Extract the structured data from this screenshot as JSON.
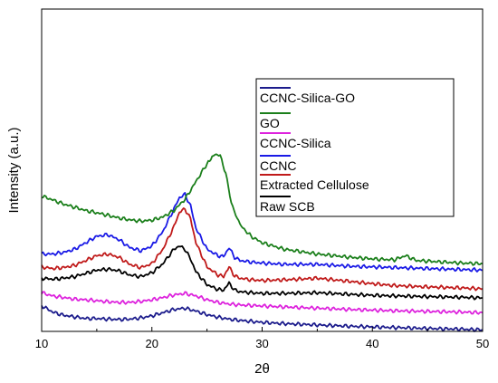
{
  "chart_data": {
    "type": "line",
    "xlabel": "2θ",
    "ylabel": "Intensity (a.u.)",
    "xlim": [
      10,
      50
    ],
    "xticks": [
      10,
      20,
      30,
      40,
      50
    ],
    "ylim": [
      0,
      100
    ],
    "y_tick_labels_shown": false,
    "grid": false,
    "legend_position": "right",
    "series": [
      {
        "name": "CCNC-Silica-GO",
        "color": "#1c1c8c",
        "x": [
          10,
          11,
          12,
          13,
          14,
          15,
          16,
          17,
          18,
          19,
          20,
          21,
          22,
          23,
          24,
          25,
          26,
          27,
          28,
          30,
          32,
          35,
          38,
          40,
          42,
          45,
          48,
          50
        ],
        "y": [
          8.0,
          6.0,
          5.0,
          4.5,
          4.0,
          4.0,
          3.8,
          3.7,
          3.8,
          4.2,
          4.8,
          5.8,
          6.8,
          7.2,
          6.3,
          5.2,
          4.4,
          3.8,
          3.4,
          2.8,
          2.4,
          2.0,
          1.6,
          1.4,
          1.2,
          0.9,
          0.7,
          0.5
        ]
      },
      {
        "name": "GO",
        "color": "#1b7f1b",
        "x": [
          10,
          11,
          12,
          13,
          14,
          15,
          16,
          17,
          18,
          19,
          20,
          21,
          22,
          23,
          24,
          25,
          25.7,
          26.2,
          26.7,
          27.2,
          28,
          29,
          30,
          32,
          35,
          38,
          40,
          42,
          43,
          44,
          46,
          48,
          50
        ],
        "y": [
          42.0,
          40.8,
          39.5,
          38.5,
          37.5,
          36.8,
          36.0,
          35.2,
          34.6,
          34.2,
          34.5,
          35.5,
          37.5,
          41.0,
          46.5,
          52.0,
          55.0,
          54.5,
          49.0,
          40.0,
          33.0,
          29.5,
          27.5,
          25.5,
          24.0,
          23.0,
          22.5,
          22.2,
          23.5,
          22.0,
          21.6,
          21.2,
          21.0
        ]
      },
      {
        "name": "CCNC-Silica",
        "color": "#dd22dd",
        "x": [
          10,
          11,
          12,
          13,
          14,
          15,
          16,
          17,
          18,
          19,
          20,
          21,
          22,
          23,
          24,
          25,
          26,
          27,
          28,
          30,
          32,
          35,
          38,
          40,
          42,
          45,
          48,
          50
        ],
        "y": [
          12.0,
          11.0,
          10.5,
          10.0,
          9.8,
          9.5,
          9.2,
          9.0,
          9.0,
          9.3,
          9.8,
          10.5,
          11.3,
          11.8,
          11.0,
          9.8,
          9.0,
          8.5,
          8.2,
          7.9,
          7.6,
          7.2,
          6.8,
          6.6,
          6.4,
          6.2,
          6.0,
          5.8
        ]
      },
      {
        "name": "CCNC",
        "color": "#1a1ae6",
        "x": [
          10,
          11,
          12,
          13,
          14,
          15,
          16,
          17,
          18,
          19,
          20,
          21,
          22,
          22.5,
          23,
          23.5,
          24,
          25,
          26,
          26.5,
          27,
          27.5,
          28,
          29,
          30,
          32,
          35,
          38,
          40,
          42,
          45,
          48,
          50
        ],
        "y": [
          24.0,
          24.0,
          24.5,
          25.5,
          27.5,
          29.5,
          30.0,
          28.5,
          26.0,
          25.0,
          26.5,
          31.0,
          38.0,
          41.5,
          42.5,
          39.0,
          32.0,
          25.5,
          23.5,
          23.2,
          26.0,
          23.0,
          22.0,
          21.5,
          21.2,
          20.8,
          20.8,
          20.2,
          20.0,
          19.8,
          19.5,
          19.2,
          19.0
        ]
      },
      {
        "name": "Extracted Cellulose",
        "color": "#c01a1a",
        "x": [
          10,
          11,
          12,
          13,
          14,
          15,
          16,
          17,
          18,
          19,
          20,
          21,
          22,
          22.5,
          23,
          23.5,
          24,
          25,
          26,
          26.5,
          27,
          27.5,
          28,
          29,
          30,
          32,
          35,
          38,
          40,
          42,
          45,
          48,
          50
        ],
        "y": [
          20.0,
          19.5,
          19.8,
          20.5,
          22.0,
          23.5,
          24.0,
          23.0,
          20.8,
          19.8,
          21.0,
          25.5,
          32.5,
          37.0,
          38.0,
          35.0,
          27.5,
          20.0,
          17.5,
          17.0,
          20.0,
          17.2,
          16.5,
          16.0,
          15.8,
          16.0,
          16.5,
          15.5,
          14.8,
          14.2,
          13.8,
          13.5,
          13.2
        ]
      },
      {
        "name": "Raw SCB",
        "color": "#000000",
        "x": [
          10,
          11,
          12,
          13,
          14,
          15,
          16,
          17,
          18,
          19,
          20,
          21,
          22,
          22.5,
          23,
          23.5,
          24,
          25,
          26,
          26.5,
          27,
          27.5,
          28,
          29,
          30,
          32,
          35,
          38,
          40,
          42,
          45,
          48,
          50
        ],
        "y": [
          16.5,
          16.2,
          16.5,
          17.0,
          18.0,
          19.0,
          19.3,
          18.8,
          17.5,
          17.0,
          18.2,
          21.0,
          25.5,
          26.5,
          25.5,
          22.5,
          18.5,
          14.5,
          13.0,
          12.8,
          15.0,
          12.8,
          12.3,
          12.0,
          11.8,
          11.8,
          12.0,
          11.5,
          11.2,
          11.0,
          10.8,
          10.6,
          10.4
        ]
      }
    ]
  }
}
